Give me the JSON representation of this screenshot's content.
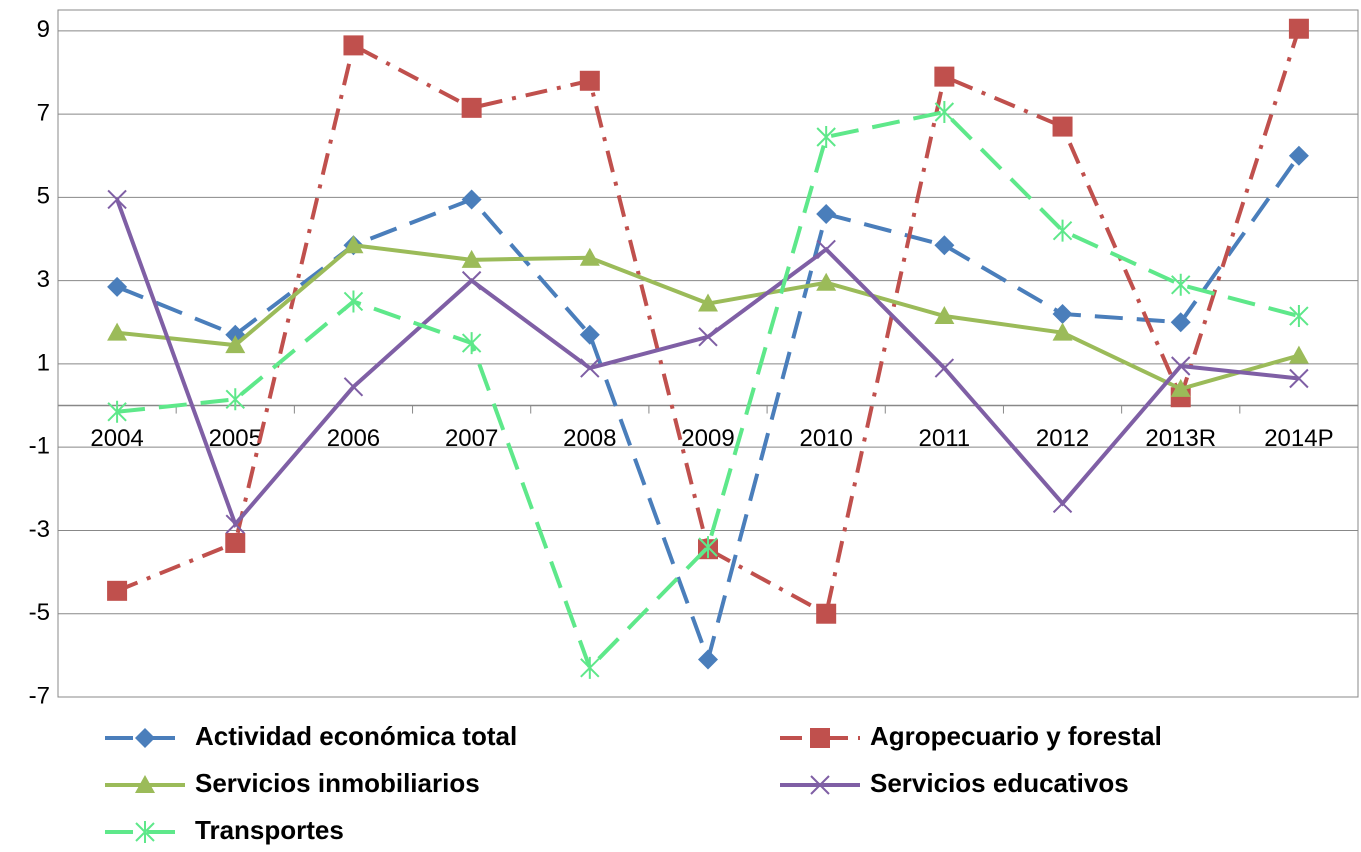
{
  "chart_data": {
    "type": "line",
    "categories": [
      "2004",
      "2005",
      "2006",
      "2007",
      "2008",
      "2009",
      "2010",
      "2011",
      "2012",
      "2013R",
      "2014P"
    ],
    "series": [
      {
        "name": "Actividad económica total",
        "color": "#4a7ebb",
        "marker": "diamond",
        "dash": "dash",
        "values": [
          2.85,
          1.7,
          3.85,
          4.95,
          1.7,
          -6.1,
          4.6,
          3.85,
          2.2,
          2.0,
          6.0
        ]
      },
      {
        "name": "Agropecuario y forestal",
        "color": "#c0504d",
        "marker": "square",
        "dash": "dashdot",
        "values": [
          -4.45,
          -3.3,
          8.65,
          7.15,
          7.8,
          -3.45,
          -5.0,
          7.9,
          6.7,
          0.2,
          9.05
        ]
      },
      {
        "name": "Servicios inmobiliarios",
        "color": "#9bbb59",
        "marker": "triangle",
        "dash": "solid",
        "values": [
          1.75,
          1.45,
          3.85,
          3.5,
          3.55,
          2.45,
          2.95,
          2.15,
          1.75,
          0.4,
          1.2
        ]
      },
      {
        "name": "Servicios educativos",
        "color": "#7f5fa5",
        "marker": "x",
        "dash": "solid",
        "values": [
          4.95,
          -2.85,
          0.45,
          3.0,
          0.9,
          1.65,
          3.75,
          0.9,
          -2.35,
          0.95,
          0.65
        ]
      },
      {
        "name": "Transportes",
        "color": "#5ee88a",
        "marker": "star",
        "dash": "dash",
        "values": [
          -0.15,
          0.15,
          2.5,
          1.5,
          -6.3,
          -3.4,
          6.45,
          7.05,
          4.2,
          2.9,
          2.15
        ]
      }
    ],
    "ylim": [
      -7,
      9.5
    ],
    "yticks": [
      9,
      7,
      5,
      3,
      1,
      -1,
      -3,
      -5,
      -7
    ],
    "grid": true
  }
}
